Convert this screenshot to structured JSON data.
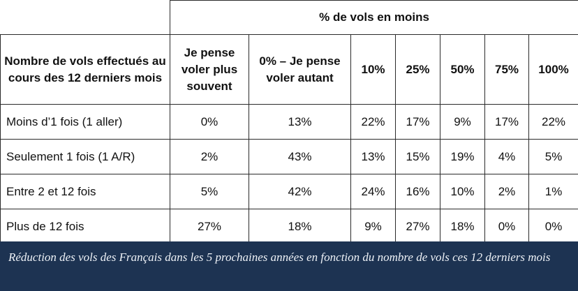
{
  "table": {
    "super_header": "% de vols en moins",
    "row_header": "Nombre de vols effectués au cours des 12 derniers mois",
    "columns": [
      "Je pense voler plus souvent",
      "0% – Je pense voler autant",
      "10%",
      "25%",
      "50%",
      "75%",
      "100%"
    ],
    "rows": [
      {
        "label": "Moins d’1 fois (1 aller)",
        "values": [
          "0%",
          "13%",
          "22%",
          "17%",
          "9%",
          "17%",
          "22%"
        ]
      },
      {
        "label": "Seulement 1 fois (1 A/R)",
        "values": [
          "2%",
          "43%",
          "13%",
          "15%",
          "19%",
          "4%",
          "5%"
        ]
      },
      {
        "label": "Entre 2 et 12 fois",
        "values": [
          "5%",
          "42%",
          "24%",
          "16%",
          "10%",
          "2%",
          "1%"
        ]
      },
      {
        "label": "Plus de 12 fois",
        "values": [
          "27%",
          "18%",
          "9%",
          "27%",
          "18%",
          "0%",
          "0%"
        ]
      }
    ]
  },
  "caption": "Réduction des vols des Français dans les 5 prochaines années en fonction du nombre de vols ces 12 derniers mois"
}
